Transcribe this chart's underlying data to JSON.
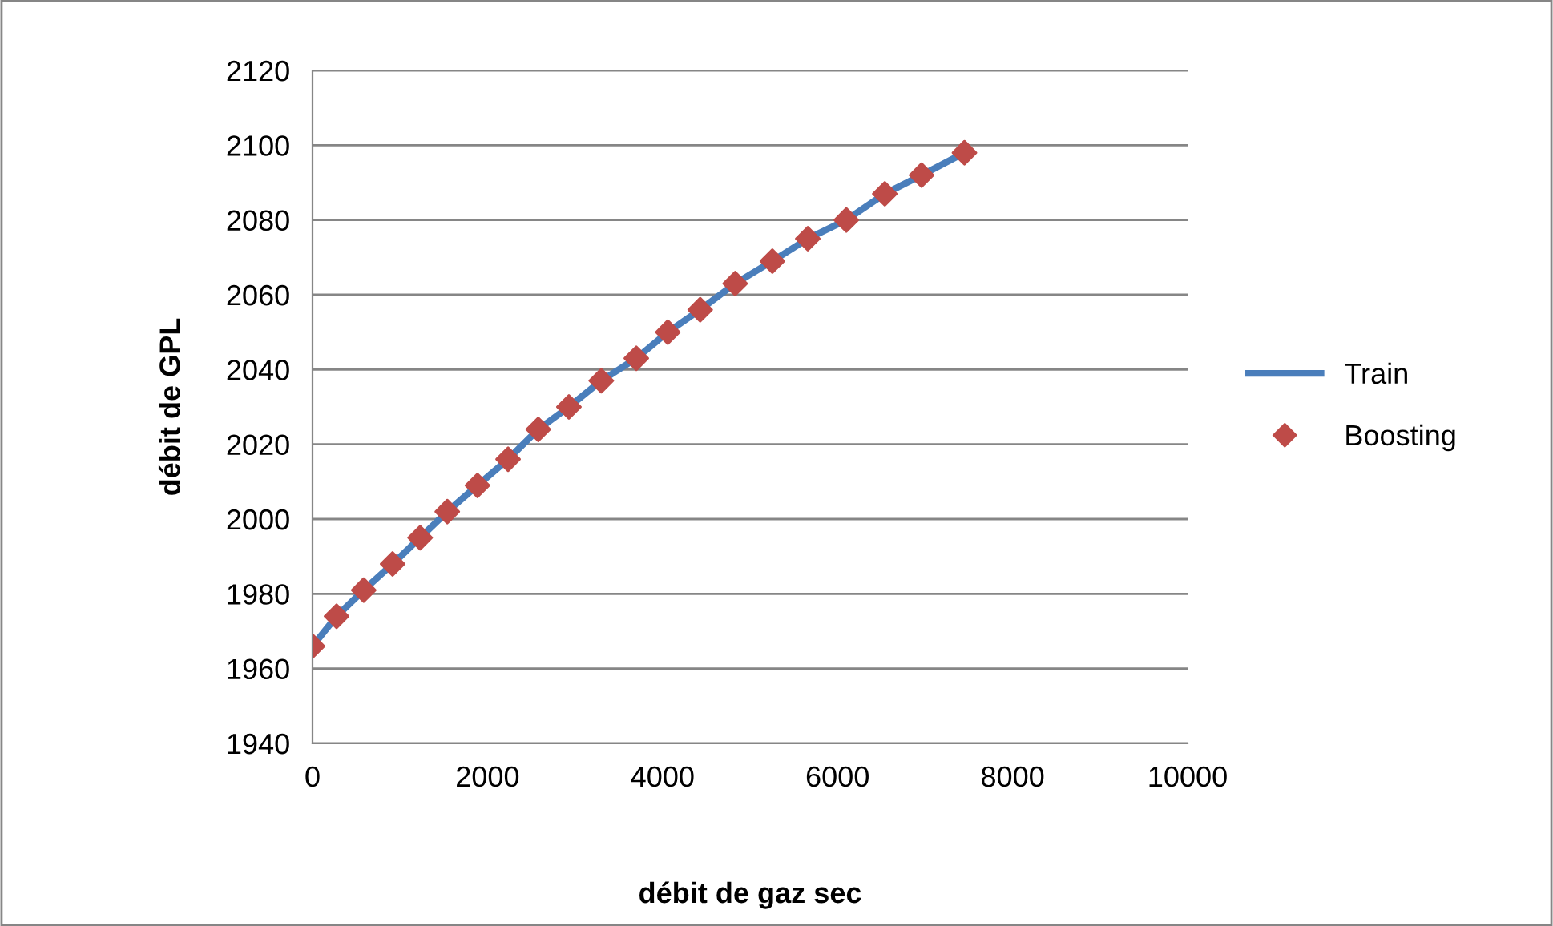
{
  "chart_data": {
    "type": "line",
    "xlabel": "débit de gaz sec",
    "ylabel": "débit de GPL",
    "x": [
      0,
      275,
      585,
      915,
      1230,
      1540,
      1885,
      2235,
      2580,
      2930,
      3300,
      3700,
      4060,
      4430,
      4830,
      5255,
      5660,
      6100,
      6540,
      6960,
      7450
    ],
    "series": [
      {
        "name": "Train",
        "color": "#4a7ebb",
        "marker": "none",
        "line_style": "solid",
        "values": [
          1966,
          1974,
          1981,
          1988,
          1995,
          2002,
          2009,
          2016,
          2024,
          2030,
          2037,
          2043,
          2050,
          2056,
          2063,
          2069,
          2075,
          2080,
          2087,
          2092,
          2098
        ]
      },
      {
        "name": "Boosting",
        "type": "scatter",
        "color": "#be4b48",
        "marker": "diamond",
        "values": [
          1966,
          1974,
          1981,
          1988,
          1995,
          2002,
          2009,
          2016,
          2024,
          2030,
          2037,
          2043,
          2050,
          2056,
          2063,
          2069,
          2075,
          2080,
          2087,
          2092,
          2098
        ]
      }
    ],
    "xlim": [
      0,
      10000
    ],
    "xticks": [
      0,
      2000,
      4000,
      6000,
      8000,
      10000
    ],
    "ylim": [
      1940,
      2120
    ],
    "yticks": [
      1940,
      1960,
      1980,
      2000,
      2020,
      2040,
      2060,
      2080,
      2100,
      2120
    ],
    "grid": "y",
    "legend": "right"
  }
}
